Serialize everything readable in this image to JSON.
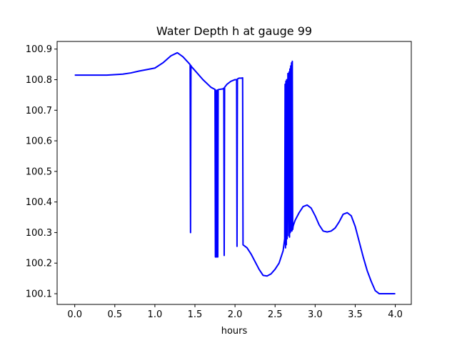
{
  "chart_data": {
    "type": "line",
    "title": "Water Depth h at gauge 99",
    "xlabel": "hours",
    "ylabel": "",
    "xlim": [
      -0.22,
      4.2
    ],
    "ylim": [
      100.065,
      100.925
    ],
    "grid": false,
    "xticks": [
      0.0,
      0.5,
      1.0,
      1.5,
      2.0,
      2.5,
      3.0,
      3.5,
      4.0
    ],
    "xtick_labels": [
      "0.0",
      "0.5",
      "1.0",
      "1.5",
      "2.0",
      "2.5",
      "3.0",
      "3.5",
      "4.0"
    ],
    "yticks": [
      100.1,
      100.2,
      100.3,
      100.4,
      100.5,
      100.6,
      100.7,
      100.8,
      100.9
    ],
    "ytick_labels": [
      "100.1",
      "100.2",
      "100.3",
      "100.4",
      "100.5",
      "100.6",
      "100.7",
      "100.8",
      "100.9"
    ],
    "series": [
      {
        "color": "#0000ff",
        "x": [
          0.0,
          0.2,
          0.4,
          0.6,
          0.7,
          0.8,
          0.9,
          1.0,
          1.1,
          1.2,
          1.28,
          1.35,
          1.42,
          1.44,
          1.445,
          1.45,
          1.455,
          1.5,
          1.6,
          1.7,
          1.75,
          1.755,
          1.76,
          1.765,
          1.77,
          1.775,
          1.78,
          1.785,
          1.79,
          1.8,
          1.85,
          1.86,
          1.865,
          1.87,
          1.9,
          1.95,
          2.0,
          2.02,
          2.025,
          2.03,
          2.05,
          2.08,
          2.095,
          2.1,
          2.15,
          2.2,
          2.3,
          2.35,
          2.4,
          2.45,
          2.5,
          2.55,
          2.6,
          2.62,
          2.625,
          2.63,
          2.635,
          2.64,
          2.645,
          2.65,
          2.66,
          2.67,
          2.675,
          2.68,
          2.685,
          2.69,
          2.695,
          2.7,
          2.705,
          2.71,
          2.715,
          2.72,
          2.725,
          2.73,
          2.75,
          2.8,
          2.85,
          2.9,
          2.95,
          3.0,
          3.05,
          3.1,
          3.15,
          3.2,
          3.25,
          3.3,
          3.35,
          3.4,
          3.45,
          3.5,
          3.55,
          3.6,
          3.65,
          3.7,
          3.75,
          3.8,
          3.85,
          3.9,
          3.95,
          4.0
        ],
        "y": [
          100.815,
          100.815,
          100.815,
          100.818,
          100.822,
          100.828,
          100.833,
          100.838,
          100.855,
          100.878,
          100.888,
          100.875,
          100.855,
          100.849,
          100.3,
          100.846,
          100.843,
          100.83,
          100.8,
          100.775,
          100.768,
          100.22,
          100.765,
          100.22,
          100.765,
          100.22,
          100.766,
          100.22,
          100.767,
          100.768,
          100.77,
          100.772,
          100.225,
          100.775,
          100.785,
          100.795,
          100.8,
          100.8,
          100.255,
          100.802,
          100.805,
          100.805,
          100.806,
          100.26,
          100.25,
          100.23,
          100.18,
          100.16,
          100.158,
          100.165,
          100.18,
          100.2,
          100.24,
          100.28,
          100.785,
          100.25,
          100.795,
          100.26,
          100.8,
          100.28,
          100.82,
          100.29,
          100.825,
          100.285,
          100.835,
          100.3,
          100.845,
          100.305,
          100.855,
          100.305,
          100.86,
          100.31,
          100.32,
          100.325,
          100.34,
          100.365,
          100.385,
          100.39,
          100.38,
          100.355,
          100.325,
          100.305,
          100.302,
          100.305,
          100.315,
          100.335,
          100.36,
          100.365,
          100.355,
          100.32,
          100.27,
          100.22,
          100.175,
          100.14,
          100.11,
          100.1,
          100.1,
          100.1,
          100.1,
          100.1
        ]
      }
    ]
  }
}
